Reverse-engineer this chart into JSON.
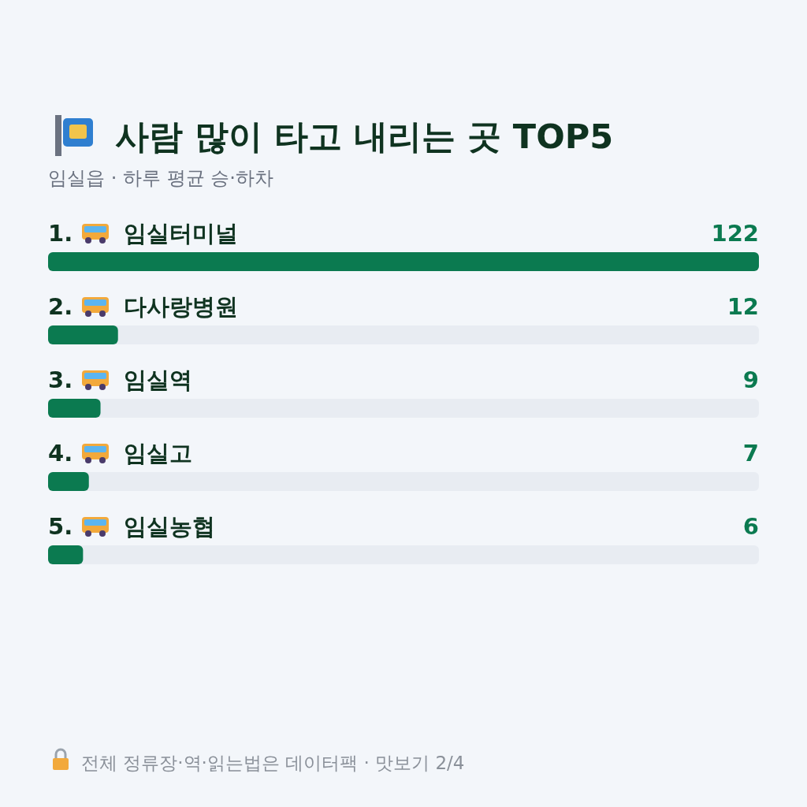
{
  "chart_data": {
    "type": "bar",
    "orientation": "horizontal",
    "title": "사람 많이 타고 내리는 곳 TOP5",
    "subtitle": "임실읍 · 하루 평균 승·하차",
    "categories": [
      "1. 임실터미널",
      "2. 다사랑병원",
      "3. 임실역",
      "4. 임실고",
      "5. 임실농협"
    ],
    "values": [
      122,
      12,
      9,
      7,
      6
    ],
    "color": "#0b7a50",
    "data_labels": true,
    "annotations": [
      "전체 정류장·역·읽는법은 데이터팩 · 맛보기 2/4"
    ]
  }
}
